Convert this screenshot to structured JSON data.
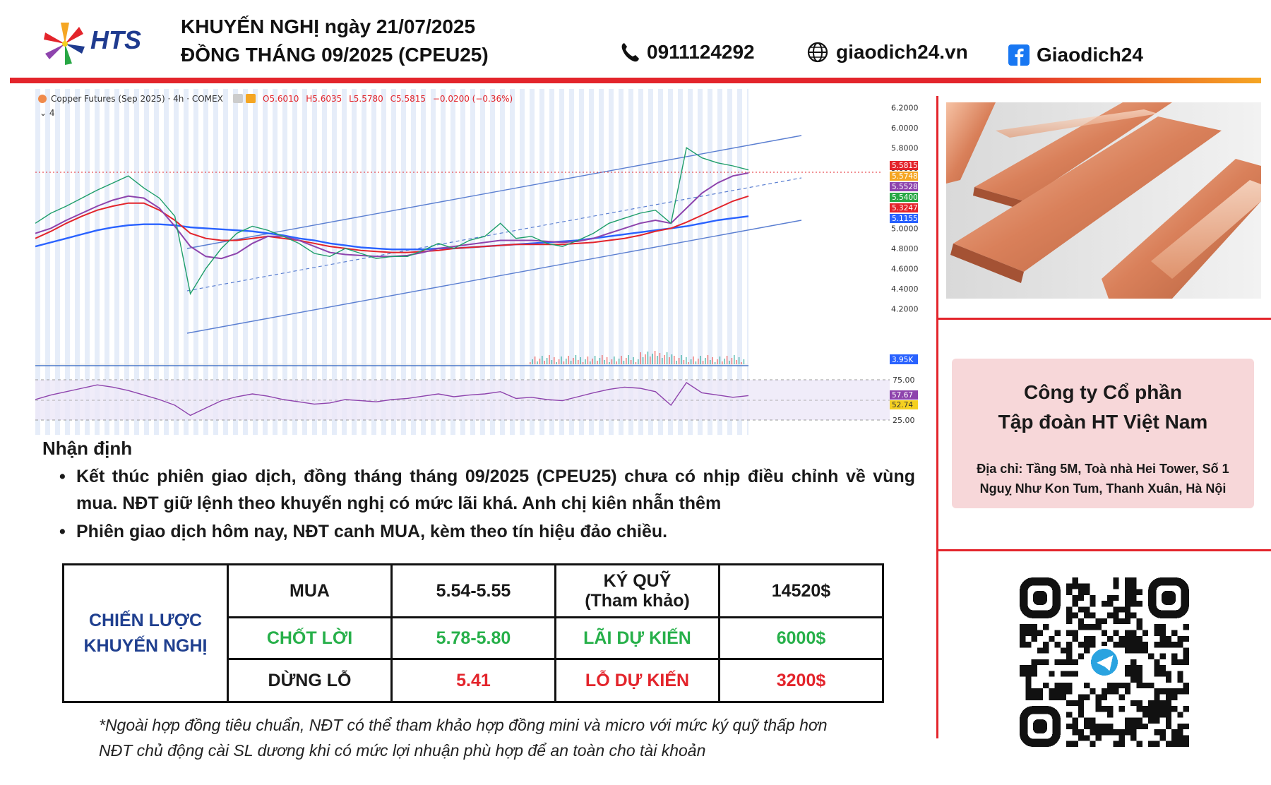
{
  "header": {
    "brand": "HTS",
    "title_line1": "KHUYẾN NGHỊ ngày 21/07/2025",
    "title_line2": "ĐỒNG THÁNG 09/2025 (CPEU25)",
    "phone": "0911124292",
    "website": "giaodich24.vn",
    "facebook": "Giaodich24",
    "icons": {
      "phone": "phone-icon",
      "web": "globe-icon",
      "facebook": "facebook-icon"
    },
    "colors": {
      "rule_red": "#e3242b",
      "rule_orange": "#f5a623",
      "brand_blue": "#1f3b8f"
    }
  },
  "chart_data": {
    "type": "line",
    "instrument": "Copper Futures (Sep 2025) · 4h · COMEX",
    "ohlc": {
      "open": "O5.6010",
      "high": "H5.6035",
      "low": "L5.5780",
      "close": "C5.5815",
      "change": "−0.0200 (−0.36%)"
    },
    "indicator_count": "4",
    "ylim": [
      4.0,
      6.3
    ],
    "y_ticks": [
      "6.2000",
      "6.0000",
      "5.8000",
      "5.6000",
      "5.4000",
      "5.2000",
      "5.0000",
      "4.8000",
      "4.6000",
      "4.4000",
      "4.2000"
    ],
    "price_labels": [
      {
        "value": "5.5815",
        "color": "#e3242b"
      },
      {
        "value": "5.5748",
        "color": "#f5a623"
      },
      {
        "value": "5.5528",
        "color": "#8e44ad"
      },
      {
        "value": "5.5400",
        "color": "#27a744"
      },
      {
        "value": "5.3247",
        "color": "#e3242b"
      },
      {
        "value": "5.1155",
        "color": "#2962ff"
      }
    ],
    "volume_label": "3.95K",
    "rsi_ticks": [
      "75.00",
      "25.00"
    ],
    "rsi_labels": [
      {
        "value": "57.67",
        "color": "#8e44ad"
      },
      {
        "value": "52.74",
        "color": "#f5d020"
      }
    ],
    "price_series": [
      5.05,
      5.15,
      5.22,
      5.3,
      5.38,
      5.45,
      5.52,
      5.4,
      5.3,
      5.12,
      4.35,
      4.6,
      4.8,
      4.95,
      5.02,
      4.98,
      4.92,
      4.85,
      4.75,
      4.72,
      4.8,
      4.75,
      4.7,
      4.72,
      4.72,
      4.78,
      4.85,
      4.8,
      4.88,
      4.92,
      5.05,
      4.9,
      4.92,
      4.85,
      4.82,
      4.88,
      4.95,
      5.05,
      5.1,
      5.15,
      5.18,
      5.05,
      5.8,
      5.7,
      5.65,
      5.62,
      5.58
    ],
    "ma_purple": [
      4.95,
      5.0,
      5.08,
      5.15,
      5.22,
      5.28,
      5.32,
      5.3,
      5.2,
      5.02,
      4.82,
      4.72,
      4.7,
      4.75,
      4.85,
      4.92,
      4.92,
      4.88,
      4.82,
      4.76,
      4.74,
      4.73,
      4.72,
      4.72,
      4.73,
      4.76,
      4.8,
      4.82,
      4.84,
      4.86,
      4.88,
      4.88,
      4.88,
      4.87,
      4.86,
      4.87,
      4.9,
      4.95,
      5.0,
      5.05,
      5.08,
      5.05,
      5.2,
      5.35,
      5.45,
      5.52,
      5.55
    ],
    "ma_red": [
      4.9,
      4.97,
      5.05,
      5.12,
      5.18,
      5.22,
      5.25,
      5.25,
      5.18,
      5.08,
      4.95,
      4.9,
      4.88,
      4.88,
      4.9,
      4.92,
      4.9,
      4.88,
      4.85,
      4.82,
      4.8,
      4.78,
      4.77,
      4.76,
      4.76,
      4.77,
      4.78,
      4.8,
      4.81,
      4.82,
      4.83,
      4.84,
      4.84,
      4.84,
      4.84,
      4.85,
      4.86,
      4.88,
      4.9,
      4.93,
      4.97,
      5.0,
      5.06,
      5.13,
      5.2,
      5.27,
      5.32
    ],
    "ma_blue": [
      4.82,
      4.86,
      4.9,
      4.94,
      4.98,
      5.01,
      5.03,
      5.04,
      5.04,
      5.03,
      5.01,
      5.0,
      4.99,
      4.98,
      4.97,
      4.95,
      4.93,
      4.9,
      4.88,
      4.85,
      4.83,
      4.81,
      4.8,
      4.79,
      4.79,
      4.79,
      4.8,
      4.8,
      4.81,
      4.82,
      4.83,
      4.84,
      4.85,
      4.86,
      4.87,
      4.88,
      4.9,
      4.92,
      4.94,
      4.96,
      4.98,
      5.0,
      5.02,
      5.05,
      5.08,
      5.1,
      5.12
    ],
    "rsi_series": [
      50,
      58,
      64,
      70,
      76,
      72,
      66,
      58,
      50,
      40,
      22,
      35,
      48,
      55,
      60,
      56,
      50,
      46,
      42,
      44,
      50,
      48,
      46,
      50,
      52,
      56,
      60,
      55,
      58,
      60,
      64,
      52,
      54,
      50,
      48,
      55,
      62,
      68,
      72,
      70,
      64,
      40,
      80,
      62,
      58,
      54,
      57
    ]
  },
  "photo": {
    "subject": "copper-bars-image"
  },
  "company": {
    "name_line1": "Công ty Cổ phần",
    "name_line2": "Tập đoàn HT Việt Nam",
    "addr_line1": "Địa chỉ: Tầng 5M, Toà nhà Hei Tower, Số 1",
    "addr_line2": "Nguỵ Như Kon Tum, Thanh Xuân, Hà Nội"
  },
  "analysis": {
    "heading": "Nhận định",
    "bullets": [
      "Kết thúc phiên giao dịch, đồng tháng tháng 09/2025 (CPEU25) chưa có nhịp điều chỉnh về vùng mua. NĐT giữ lệnh theo khuyến nghị có mức lãi khá. Anh chị kiên nhẫn thêm",
      "Phiên giao dịch hôm nay, NĐT canh MUA, kèm theo tín hiệu đảo chiều."
    ]
  },
  "strategy": {
    "label_line1": "CHIẾN LƯỢC",
    "label_line2": "KHUYẾN NGHỊ",
    "rows": [
      {
        "action": "MUA",
        "price": "5.54-5.55",
        "metric_line1": "KÝ QUỸ",
        "metric_line2": "(Tham khảo)",
        "amount": "14520$"
      },
      {
        "action": "CHỐT LỜI",
        "price": "5.78-5.80",
        "metric": "LÃI DỰ KIẾN",
        "amount": "6000$"
      },
      {
        "action": "DỪNG LỖ",
        "price": "5.41",
        "metric": "LỖ DỰ KIẾN",
        "amount": "3200$"
      }
    ]
  },
  "footnote": {
    "line1": "*Ngoài hợp đồng tiêu chuẩn, NĐT có thể tham khảo hợp đồng mini và micro với mức ký quỹ thấp hơn",
    "line2": "NĐT chủ động cài SL dương khi có mức lợi nhuận phù hợp để an toàn cho tài khoản"
  },
  "qr": {
    "center_icon": "telegram-icon"
  }
}
